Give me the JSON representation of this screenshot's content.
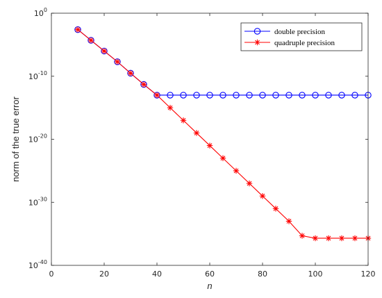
{
  "chart_data": {
    "type": "line",
    "title": "",
    "xlabel": "n",
    "ylabel": "norm of the true error",
    "xlim": [
      0,
      120
    ],
    "ylim_log10": [
      -40,
      0
    ],
    "y_scale": "log",
    "xticks": [
      "0",
      "20",
      "40",
      "60",
      "80",
      "100",
      "120"
    ],
    "yticks": [
      {
        "base": "10",
        "exp": "0"
      },
      {
        "base": "10",
        "exp": "-10"
      },
      {
        "base": "10",
        "exp": "-20"
      },
      {
        "base": "10",
        "exp": "-30"
      },
      {
        "base": "10",
        "exp": "-40"
      }
    ],
    "legend_position": "top-right",
    "grid": false,
    "x": [
      10,
      15,
      20,
      25,
      30,
      35,
      40,
      45,
      50,
      55,
      60,
      65,
      70,
      75,
      80,
      85,
      90,
      95,
      100,
      105,
      110,
      115,
      120
    ],
    "series": [
      {
        "name": "double precision",
        "color": "#0000ff",
        "marker": "circle",
        "x": [
          10,
          15,
          20,
          25,
          30,
          35,
          40,
          45,
          50,
          55,
          60,
          65,
          70,
          75,
          80,
          85,
          90,
          95,
          100,
          105,
          110,
          115,
          120
        ],
        "y": [
          0.0025,
          5e-05,
          1e-06,
          2e-08,
          3e-10,
          5e-12,
          1e-13,
          1e-13,
          1e-13,
          1e-13,
          1e-13,
          1e-13,
          1e-13,
          1e-13,
          1e-13,
          1e-13,
          1e-13,
          1e-13,
          1e-13,
          1e-13,
          1e-13,
          1e-13,
          1e-13
        ]
      },
      {
        "name": "quadruple precision",
        "color": "#ff0000",
        "marker": "asterisk",
        "x": [
          10,
          15,
          20,
          25,
          30,
          35,
          40,
          45,
          50,
          55,
          60,
          65,
          70,
          75,
          80,
          85,
          90,
          95,
          100,
          105,
          110,
          115,
          120
        ],
        "y": [
          0.0025,
          5e-05,
          1e-06,
          2e-08,
          3e-10,
          5e-12,
          1e-13,
          1e-15,
          1e-17,
          1e-19,
          1e-21,
          1e-23,
          1e-25,
          1e-27,
          1e-29,
          1e-31,
          1e-33,
          5e-36,
          2e-36,
          2e-36,
          2e-36,
          2e-36,
          2e-36
        ]
      }
    ]
  }
}
